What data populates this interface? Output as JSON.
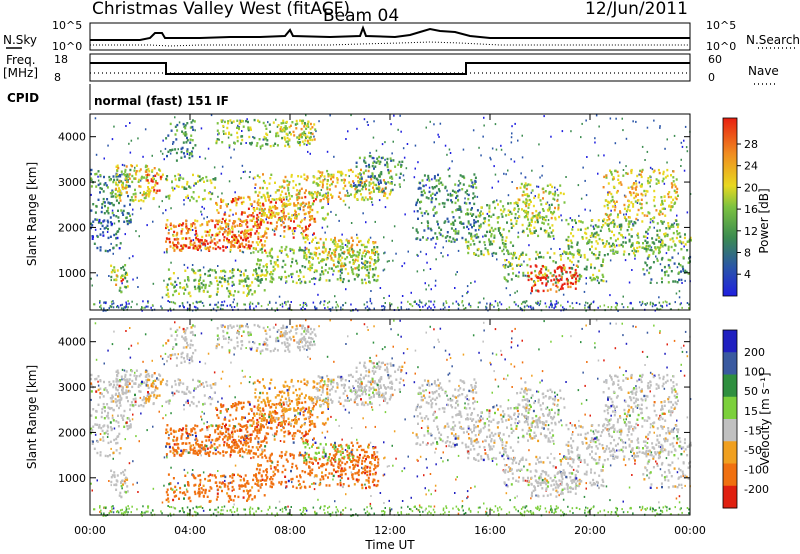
{
  "header": {
    "title": "Christmas Valley West (fitACF)",
    "beam": "Beam 04",
    "date": "12/Jun/2011"
  },
  "top_panels": {
    "nsky_label": "N.Sky",
    "nsky_tick_hi": "10^5",
    "nsky_tick_lo": "10^0",
    "nsearch_label": "N.Search",
    "nsearch_tick_hi": "10^5",
    "nsearch_tick_lo": "10^0",
    "freq_label_1": "Freq.",
    "freq_label_2": "[MHz]",
    "freq_tick_hi": "18",
    "freq_tick_lo": "8",
    "nave_label": "Nave",
    "nave_tick_hi": "60",
    "nave_tick_lo": "0",
    "cpid_label": "CPID",
    "cpid_value": "normal (fast) 151 IF"
  },
  "chart_data": [
    {
      "type": "heatmap",
      "name": "power",
      "ylabel": "Slant Range [km]",
      "ylim": [
        180,
        4500
      ],
      "yticks": [
        "1000",
        "2000",
        "3000",
        "4000"
      ],
      "colorbar_label": "Power [dB]",
      "colorbar_ticks": [
        "28",
        "24",
        "20",
        "16",
        "12",
        "8",
        "4"
      ],
      "colors": [
        "#1f1fe0",
        "#2a55a8",
        "#3c8c50",
        "#7cc240",
        "#e8d820",
        "#f08c20",
        "#e82010"
      ]
    },
    {
      "type": "heatmap",
      "name": "velocity",
      "ylabel": "Slant Range [km]",
      "ylim": [
        180,
        4500
      ],
      "yticks": [
        "1000",
        "2000",
        "3000",
        "4000"
      ],
      "colorbar_label": "Velocity [m s⁻¹]",
      "colorbar_ticks": [
        "200",
        "100",
        "50",
        "15",
        "-15",
        "-50",
        "-100",
        "-200"
      ],
      "colors": [
        "#2020c0",
        "#3a5aa0",
        "#2f8f3f",
        "#7cd03c",
        "#c0c0c0",
        "#f0a020",
        "#f07010",
        "#e02010"
      ]
    }
  ],
  "x_axis": {
    "ticks": [
      "00:00",
      "04:00",
      "08:00",
      "12:00",
      "16:00",
      "20:00",
      "00:00"
    ],
    "label": "Time UT"
  }
}
